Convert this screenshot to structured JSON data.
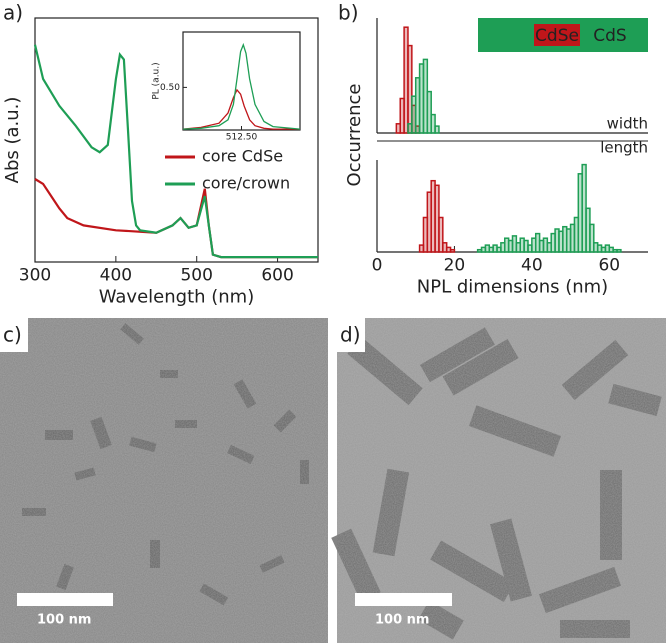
{
  "chart_data": [
    {
      "type": "line",
      "panel_label": "a)",
      "xlabel": "Wavelength (nm)",
      "ylabel": "Abs (a.u.)",
      "xlim": [
        300,
        650
      ],
      "xticks": [
        300,
        400,
        500,
        600
      ],
      "ylim": [
        0,
        1
      ],
      "frame": true,
      "legend": "center right",
      "series": [
        {
          "name": "core CdSe",
          "color": "#c0161a",
          "x": [
            300,
            310,
            320,
            330,
            340,
            360,
            400,
            450,
            470,
            480,
            490,
            500,
            510,
            515,
            520,
            530,
            650
          ],
          "values": [
            0.34,
            0.32,
            0.27,
            0.22,
            0.18,
            0.15,
            0.13,
            0.12,
            0.15,
            0.18,
            0.14,
            0.15,
            0.3,
            0.15,
            0.03,
            0.02,
            0.02
          ]
        },
        {
          "name": "core/crown",
          "color": "#1e9e55",
          "x": [
            300,
            310,
            330,
            350,
            370,
            380,
            390,
            400,
            405,
            410,
            415,
            420,
            425,
            430,
            450,
            470,
            480,
            490,
            500,
            510,
            515,
            520,
            530,
            650
          ],
          "values": [
            0.89,
            0.75,
            0.64,
            0.56,
            0.47,
            0.45,
            0.48,
            0.75,
            0.85,
            0.83,
            0.54,
            0.25,
            0.15,
            0.13,
            0.12,
            0.15,
            0.18,
            0.14,
            0.15,
            0.27,
            0.15,
            0.03,
            0.02,
            0.02
          ]
        }
      ]
    },
    {
      "type": "line",
      "ylabel": "PL (a.u.)",
      "xlim": [
        480,
        545
      ],
      "xticks": [
        {
          "value": 512.5,
          "label": "512.50"
        }
      ],
      "ylim": [
        0,
        1.15
      ],
      "yticks": [
        {
          "value": 0.5,
          "label": "0.50"
        }
      ],
      "frame": true,
      "series": [
        {
          "color": "#c0161a",
          "x": [
            480,
            490,
            500,
            505,
            508,
            510,
            512,
            514,
            517,
            520,
            525,
            530,
            545
          ],
          "values": [
            0.01,
            0.03,
            0.08,
            0.2,
            0.38,
            0.47,
            0.42,
            0.28,
            0.12,
            0.05,
            0.02,
            0.01,
            0.01
          ]
        },
        {
          "color": "#1e9e55",
          "x": [
            480,
            490,
            500,
            505,
            508,
            510,
            512,
            513.5,
            515,
            517,
            520,
            525,
            530,
            545
          ],
          "values": [
            0.01,
            0.02,
            0.05,
            0.12,
            0.3,
            0.6,
            0.92,
            1.0,
            0.9,
            0.6,
            0.3,
            0.1,
            0.04,
            0.01
          ]
        }
      ]
    },
    {
      "type": "histogram",
      "panel_label": "b)",
      "ylabel": "Occurrence",
      "label": "width",
      "xlim": [
        0,
        70
      ],
      "ylim": [
        0,
        5
      ],
      "series": [
        {
          "name": "CdSe",
          "color": "#c0161a",
          "bins": [
            5,
            6,
            7,
            8,
            9,
            10,
            11
          ],
          "values": [
            0.4,
            1.5,
            4.6,
            3.8,
            1.2,
            0.3
          ]
        },
        {
          "name": "CdS",
          "color": "#1e9e55",
          "bins": [
            8,
            9,
            10,
            11,
            12,
            13,
            14,
            15,
            16
          ],
          "values": [
            0.4,
            1.6,
            2.4,
            3,
            3.2,
            1.8,
            0.8,
            0.3
          ]
        }
      ]
    },
    {
      "type": "histogram",
      "label": "length",
      "xlabel": "NPL dimensions (nm)",
      "xlim": [
        0,
        70
      ],
      "xticks": [
        0,
        20,
        40,
        60
      ],
      "ylim": [
        0,
        4
      ],
      "series": [
        {
          "color": "#c0161a",
          "bins": [
            11,
            12,
            13,
            14,
            15,
            16,
            17,
            18,
            19,
            20
          ],
          "values": [
            0.3,
            1.5,
            2.6,
            3.1,
            2.9,
            1.5,
            0.4,
            0.2,
            0.1
          ]
        },
        {
          "color": "#1e9e55",
          "bins": [
            26,
            27,
            28,
            29,
            30,
            31,
            32,
            33,
            34,
            35,
            36,
            37,
            38,
            39,
            40,
            41,
            42,
            43,
            44,
            45,
            46,
            47,
            48,
            49,
            50,
            51,
            52,
            53,
            54,
            55,
            56,
            57,
            58,
            59,
            60,
            61,
            62,
            63
          ],
          "values": [
            0.1,
            0.2,
            0.3,
            0.2,
            0.3,
            0.2,
            0.4,
            0.6,
            0.5,
            0.7,
            0.4,
            0.6,
            0.5,
            0.3,
            0.6,
            0.8,
            0.5,
            0.6,
            0.4,
            0.8,
            1.0,
            0.9,
            1.1,
            1.0,
            1.2,
            1.5,
            3.4,
            3.8,
            1.9,
            1.2,
            0.4,
            0.3,
            0.2,
            0.3,
            0.2,
            0.1,
            0.1
          ]
        }
      ]
    }
  ],
  "images": [
    {
      "panel_label": "c)",
      "scale_bar": "100 nm"
    },
    {
      "panel_label": "d)",
      "scale_bar": "100 nm"
    }
  ]
}
